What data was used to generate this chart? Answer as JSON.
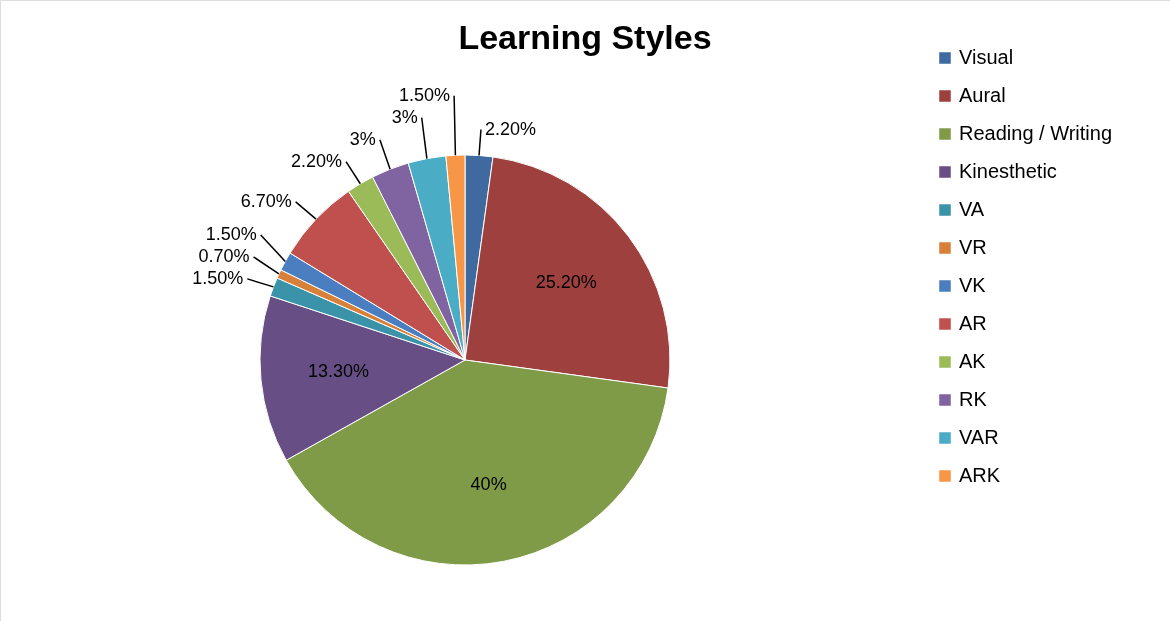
{
  "chart_data": {
    "type": "pie",
    "title": "Learning Styles",
    "categories": [
      "Visual",
      "Aural",
      "Reading / Writing",
      "Kinesthetic",
      "VA",
      "VR",
      "VK",
      "AR",
      "AK",
      "RK",
      "VAR",
      "ARK"
    ],
    "values": [
      2.2,
      25.2,
      40,
      13.3,
      1.5,
      0.7,
      1.5,
      6.7,
      2.2,
      3,
      3,
      1.5
    ],
    "value_labels": [
      "2.20%",
      "25.20%",
      "40%",
      "13.30%",
      "1.50%",
      "0.70%",
      "1.50%",
      "6.70%",
      "2.20%",
      "3%",
      "3%",
      "1.50%"
    ],
    "colors": [
      "#3e6aa0",
      "#9e413e",
      "#7f9b48",
      "#674f86",
      "#3a93a8",
      "#d7803a",
      "#4a7ec0",
      "#c0504d",
      "#9bbb59",
      "#8064a2",
      "#4bacc6",
      "#f79646"
    ],
    "legend": "right"
  }
}
